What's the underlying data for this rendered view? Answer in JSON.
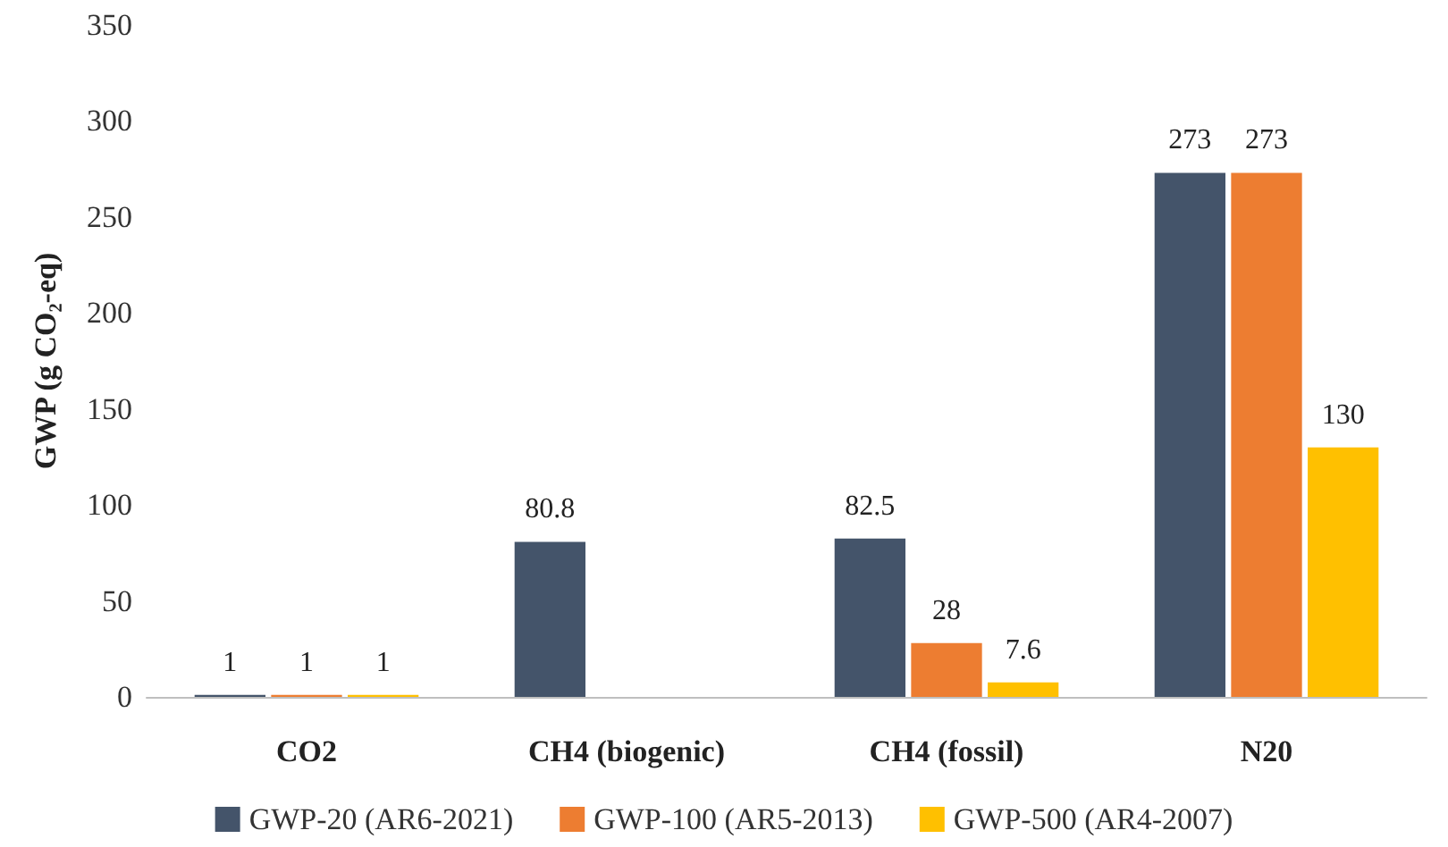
{
  "chart_data": {
    "type": "bar",
    "ylabel": "GWP (g CO₂-eq)",
    "categories": [
      "CO2",
      "CH4 (biogenic)",
      "CH4 (fossil)",
      "N20"
    ],
    "series": [
      {
        "name": "GWP-20 (AR6-2021)",
        "color": "#44546a",
        "values": [
          1,
          80.8,
          82.5,
          273
        ]
      },
      {
        "name": "GWP-100 (AR5-2013)",
        "color": "#ed7d31",
        "values": [
          1,
          null,
          28,
          273
        ]
      },
      {
        "name": "GWP-500 (AR4-2007)",
        "color": "#ffc000",
        "values": [
          1,
          null,
          7.6,
          130
        ]
      }
    ],
    "ylim": [
      0,
      350
    ],
    "yticks": [
      0,
      50,
      100,
      150,
      200,
      250,
      300,
      350
    ],
    "grid": false,
    "legend": "bottom",
    "data_labels": true
  }
}
